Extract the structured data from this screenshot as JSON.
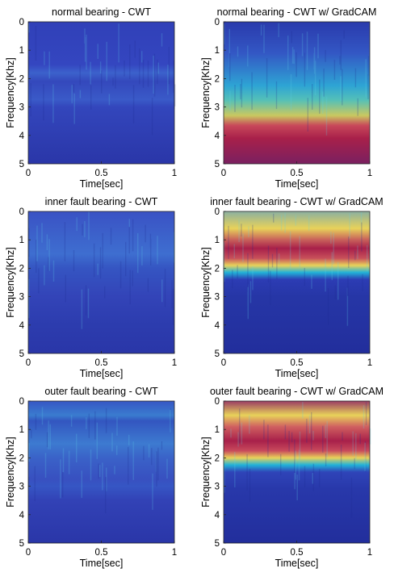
{
  "colors": {
    "low": "#2a36a8",
    "mid": "#22b2d8",
    "warm": "#e8d25a",
    "hot": "#a8204a",
    "axis": "#262626"
  },
  "chart_data": [
    {
      "type": "heatmap",
      "title": "normal bearing - CWT",
      "xlabel": "Time[sec]",
      "ylabel": "Frequency[Khz]",
      "xlim": [
        0,
        1
      ],
      "ylim": [
        0,
        5
      ],
      "y_reversed": true,
      "xticks": [
        "0",
        "0.5",
        "1"
      ],
      "yticks": [
        "0",
        "1",
        "2",
        "3",
        "4",
        "5"
      ]
    },
    {
      "type": "heatmap",
      "title": "normal bearing - CWT w/ GradCAM",
      "xlabel": "Time[sec]",
      "ylabel": "Frequency[Khz]",
      "xlim": [
        0,
        1
      ],
      "ylim": [
        0,
        5
      ],
      "y_reversed": true,
      "xticks": [
        "0",
        "0.5",
        "1"
      ],
      "yticks": [
        "0",
        "1",
        "2",
        "3",
        "4",
        "5"
      ]
    },
    {
      "type": "heatmap",
      "title": "inner fault bearing - CWT",
      "xlabel": "Time[sec]",
      "ylabel": "Frequency[Khz]",
      "xlim": [
        0,
        1
      ],
      "ylim": [
        0,
        5
      ],
      "y_reversed": true,
      "xticks": [
        "0",
        "0.5",
        "1"
      ],
      "yticks": [
        "0",
        "1",
        "2",
        "3",
        "4",
        "5"
      ]
    },
    {
      "type": "heatmap",
      "title": "inner fault bearing - CWT w/ GradCAM",
      "xlabel": "Time[sec]",
      "ylabel": "Frequency[Khz]",
      "xlim": [
        0,
        1
      ],
      "ylim": [
        0,
        5
      ],
      "y_reversed": true,
      "xticks": [
        "0",
        "0.5",
        "1"
      ],
      "yticks": [
        "0",
        "1",
        "2",
        "3",
        "4",
        "5"
      ]
    },
    {
      "type": "heatmap",
      "title": "outer fault bearing - CWT",
      "xlabel": "Time[sec]",
      "ylabel": "Frequency[Khz]",
      "xlim": [
        0,
        1
      ],
      "ylim": [
        0,
        5
      ],
      "y_reversed": true,
      "xticks": [
        "0",
        "0.5",
        "1"
      ],
      "yticks": [
        "0",
        "1",
        "2",
        "3",
        "4",
        "5"
      ]
    },
    {
      "type": "heatmap",
      "title": "outer fault bearing - CWT w/ GradCAM",
      "xlabel": "Time[sec]",
      "ylabel": "Frequency[Khz]",
      "xlim": [
        0,
        1
      ],
      "ylim": [
        0,
        5
      ],
      "y_reversed": true,
      "xticks": [
        "0",
        "0.5",
        "1"
      ],
      "yticks": [
        "0",
        "1",
        "2",
        "3",
        "4",
        "5"
      ]
    }
  ]
}
